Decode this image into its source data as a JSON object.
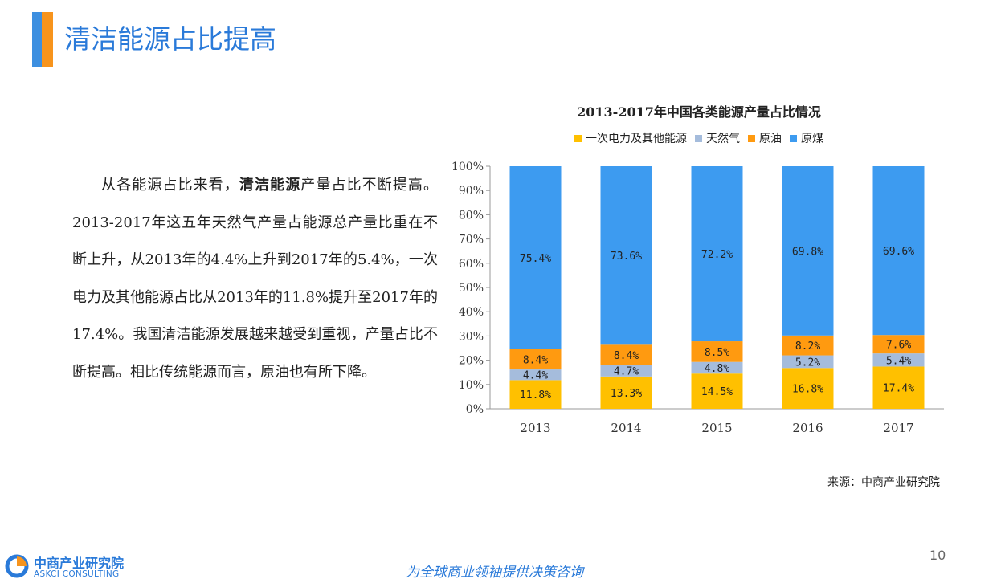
{
  "header": {
    "title": "清洁能源占比提高"
  },
  "body": {
    "segments": [
      {
        "text": "从各能源占比来看，",
        "bold": false
      },
      {
        "text": "清洁能源",
        "bold": true
      },
      {
        "text": "产量占比不断提高。2013-2017年这五年天然气产量占能源总产量比重在不断上升，从2013年的4.4%上升到2017年的5.4%，一次电力及其他能源占比从2013年的11.8%提升至2017年的17.4%。我国清洁能源发展越来越受到重视，产量占比不断提高。相比传统能源而言，原油也有所下降。",
        "bold": false
      }
    ]
  },
  "chart_data": {
    "type": "bar",
    "stacked": true,
    "title": "2013-2017年中国各类能源产量占比情况",
    "categories": [
      "2013",
      "2014",
      "2015",
      "2016",
      "2017"
    ],
    "series": [
      {
        "name": "一次电力及其他能源",
        "color": "#ffc000",
        "values": [
          11.8,
          13.3,
          14.5,
          16.8,
          17.4
        ]
      },
      {
        "name": "天然气",
        "color": "#a5bcdc",
        "values": [
          4.4,
          4.7,
          4.8,
          5.2,
          5.4
        ]
      },
      {
        "name": "原油",
        "color": "#ff9a10",
        "values": [
          8.4,
          8.4,
          8.5,
          8.2,
          7.6
        ]
      },
      {
        "name": "原煤",
        "color": "#3d9bf0",
        "values": [
          75.4,
          73.6,
          72.2,
          69.8,
          69.6
        ]
      }
    ],
    "value_suffix": "%",
    "ylim": [
      0,
      100
    ],
    "yticks": [
      "0%",
      "10%",
      "20%",
      "30%",
      "40%",
      "50%",
      "60%",
      "70%",
      "80%",
      "90%",
      "100%"
    ],
    "grid": false,
    "legend_position": "top"
  },
  "source": "来源：中商产业研究院",
  "footer": {
    "page_number": "10",
    "slogan": "为全球商业领袖提供决策咨询",
    "logo_cn": "中商产业研究院",
    "logo_en": "ASKCI CONSULTING"
  }
}
